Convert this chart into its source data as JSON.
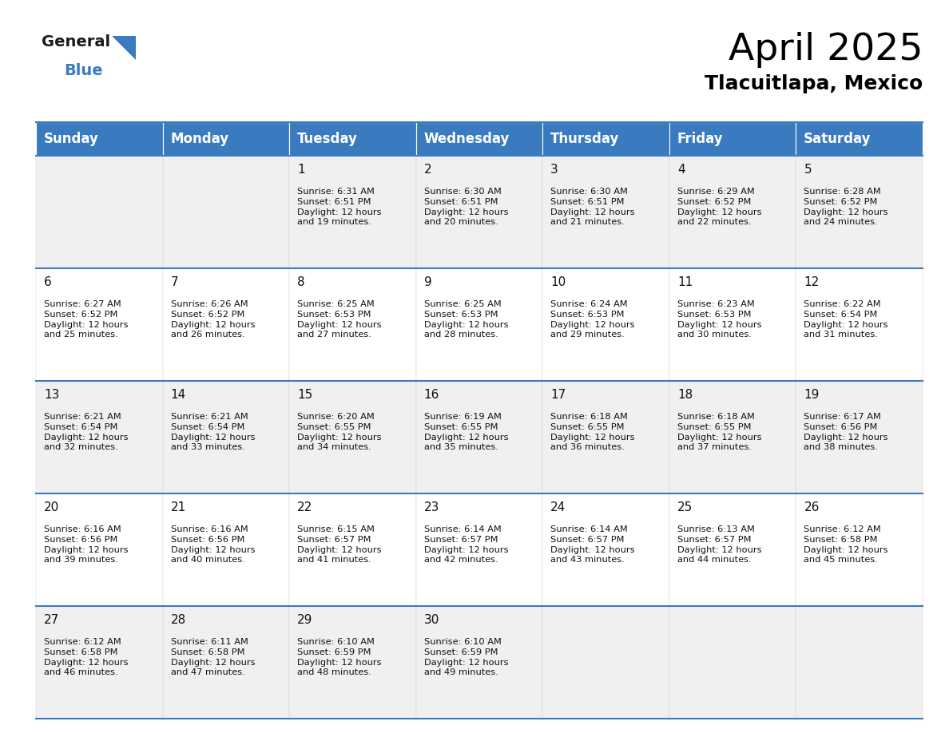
{
  "title": "April 2025",
  "subtitle": "Tlacuitlapa, Mexico",
  "header_bg": "#3a7bbf",
  "header_text": "#ffffff",
  "cell_bg_odd": "#f0f0f0",
  "cell_bg_even": "#ffffff",
  "border_color": "#3a7bbf",
  "text_color": "#111111",
  "day_names": [
    "Sunday",
    "Monday",
    "Tuesday",
    "Wednesday",
    "Thursday",
    "Friday",
    "Saturday"
  ],
  "weeks": [
    [
      {
        "day": "",
        "info": ""
      },
      {
        "day": "",
        "info": ""
      },
      {
        "day": "1",
        "info": "Sunrise: 6:31 AM\nSunset: 6:51 PM\nDaylight: 12 hours\nand 19 minutes."
      },
      {
        "day": "2",
        "info": "Sunrise: 6:30 AM\nSunset: 6:51 PM\nDaylight: 12 hours\nand 20 minutes."
      },
      {
        "day": "3",
        "info": "Sunrise: 6:30 AM\nSunset: 6:51 PM\nDaylight: 12 hours\nand 21 minutes."
      },
      {
        "day": "4",
        "info": "Sunrise: 6:29 AM\nSunset: 6:52 PM\nDaylight: 12 hours\nand 22 minutes."
      },
      {
        "day": "5",
        "info": "Sunrise: 6:28 AM\nSunset: 6:52 PM\nDaylight: 12 hours\nand 24 minutes."
      }
    ],
    [
      {
        "day": "6",
        "info": "Sunrise: 6:27 AM\nSunset: 6:52 PM\nDaylight: 12 hours\nand 25 minutes."
      },
      {
        "day": "7",
        "info": "Sunrise: 6:26 AM\nSunset: 6:52 PM\nDaylight: 12 hours\nand 26 minutes."
      },
      {
        "day": "8",
        "info": "Sunrise: 6:25 AM\nSunset: 6:53 PM\nDaylight: 12 hours\nand 27 minutes."
      },
      {
        "day": "9",
        "info": "Sunrise: 6:25 AM\nSunset: 6:53 PM\nDaylight: 12 hours\nand 28 minutes."
      },
      {
        "day": "10",
        "info": "Sunrise: 6:24 AM\nSunset: 6:53 PM\nDaylight: 12 hours\nand 29 minutes."
      },
      {
        "day": "11",
        "info": "Sunrise: 6:23 AM\nSunset: 6:53 PM\nDaylight: 12 hours\nand 30 minutes."
      },
      {
        "day": "12",
        "info": "Sunrise: 6:22 AM\nSunset: 6:54 PM\nDaylight: 12 hours\nand 31 minutes."
      }
    ],
    [
      {
        "day": "13",
        "info": "Sunrise: 6:21 AM\nSunset: 6:54 PM\nDaylight: 12 hours\nand 32 minutes."
      },
      {
        "day": "14",
        "info": "Sunrise: 6:21 AM\nSunset: 6:54 PM\nDaylight: 12 hours\nand 33 minutes."
      },
      {
        "day": "15",
        "info": "Sunrise: 6:20 AM\nSunset: 6:55 PM\nDaylight: 12 hours\nand 34 minutes."
      },
      {
        "day": "16",
        "info": "Sunrise: 6:19 AM\nSunset: 6:55 PM\nDaylight: 12 hours\nand 35 minutes."
      },
      {
        "day": "17",
        "info": "Sunrise: 6:18 AM\nSunset: 6:55 PM\nDaylight: 12 hours\nand 36 minutes."
      },
      {
        "day": "18",
        "info": "Sunrise: 6:18 AM\nSunset: 6:55 PM\nDaylight: 12 hours\nand 37 minutes."
      },
      {
        "day": "19",
        "info": "Sunrise: 6:17 AM\nSunset: 6:56 PM\nDaylight: 12 hours\nand 38 minutes."
      }
    ],
    [
      {
        "day": "20",
        "info": "Sunrise: 6:16 AM\nSunset: 6:56 PM\nDaylight: 12 hours\nand 39 minutes."
      },
      {
        "day": "21",
        "info": "Sunrise: 6:16 AM\nSunset: 6:56 PM\nDaylight: 12 hours\nand 40 minutes."
      },
      {
        "day": "22",
        "info": "Sunrise: 6:15 AM\nSunset: 6:57 PM\nDaylight: 12 hours\nand 41 minutes."
      },
      {
        "day": "23",
        "info": "Sunrise: 6:14 AM\nSunset: 6:57 PM\nDaylight: 12 hours\nand 42 minutes."
      },
      {
        "day": "24",
        "info": "Sunrise: 6:14 AM\nSunset: 6:57 PM\nDaylight: 12 hours\nand 43 minutes."
      },
      {
        "day": "25",
        "info": "Sunrise: 6:13 AM\nSunset: 6:57 PM\nDaylight: 12 hours\nand 44 minutes."
      },
      {
        "day": "26",
        "info": "Sunrise: 6:12 AM\nSunset: 6:58 PM\nDaylight: 12 hours\nand 45 minutes."
      }
    ],
    [
      {
        "day": "27",
        "info": "Sunrise: 6:12 AM\nSunset: 6:58 PM\nDaylight: 12 hours\nand 46 minutes."
      },
      {
        "day": "28",
        "info": "Sunrise: 6:11 AM\nSunset: 6:58 PM\nDaylight: 12 hours\nand 47 minutes."
      },
      {
        "day": "29",
        "info": "Sunrise: 6:10 AM\nSunset: 6:59 PM\nDaylight: 12 hours\nand 48 minutes."
      },
      {
        "day": "30",
        "info": "Sunrise: 6:10 AM\nSunset: 6:59 PM\nDaylight: 12 hours\nand 49 minutes."
      },
      {
        "day": "",
        "info": ""
      },
      {
        "day": "",
        "info": ""
      },
      {
        "day": "",
        "info": ""
      }
    ]
  ],
  "logo_general_color": "#1a1a1a",
  "logo_blue_color": "#3a7bbf",
  "logo_triangle_color": "#3a7bbf",
  "title_fontsize": 34,
  "subtitle_fontsize": 18,
  "header_fontsize": 12,
  "day_num_fontsize": 11,
  "cell_text_fontsize": 8.2
}
